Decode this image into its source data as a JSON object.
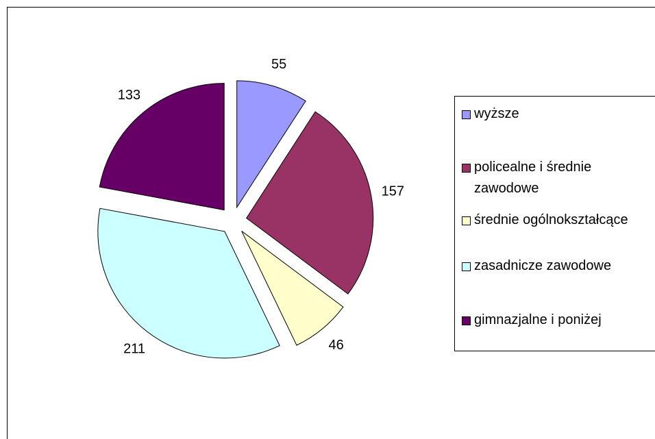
{
  "chart_data": {
    "type": "pie",
    "categories": [
      "wyższe",
      "policealne i średnie zawodowe",
      "średnie ogólnokształcące",
      "zasadnicze zawodowe",
      "gimnazjalne i poniżej"
    ],
    "values": [
      55,
      157,
      46,
      211,
      133
    ],
    "colors": [
      "#9999ff",
      "#993366",
      "#ffffcc",
      "#ccffff",
      "#660066"
    ],
    "legend": "right"
  }
}
